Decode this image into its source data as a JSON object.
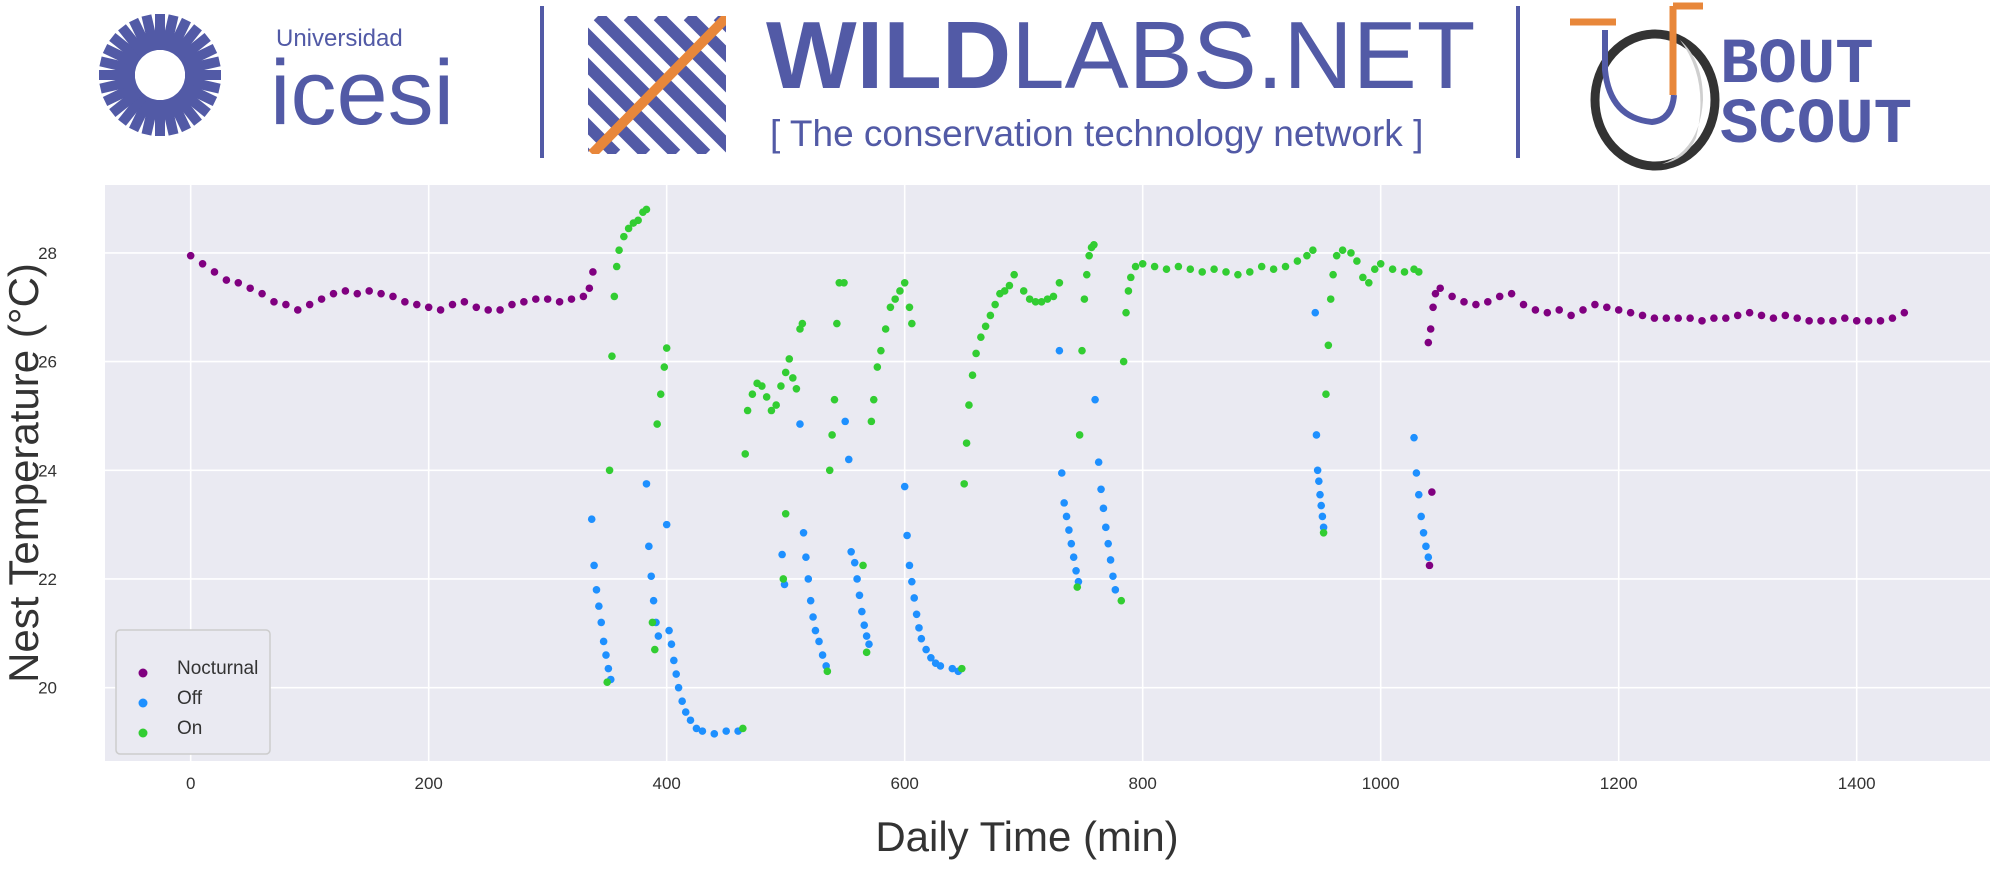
{
  "header": {
    "icesi_small": "Universidad",
    "icesi_big": "icesi",
    "wildlabs_bold": "WILD",
    "wildlabs_light": "LABS.NET",
    "wildlabs_tagline": "[ The conservation technology network ]",
    "boutscout_line1": "BOUT",
    "boutscout_line2": "SCOUT",
    "colors": {
      "brand": "#525aa6",
      "accent": "#e8873a",
      "dark": "#333333"
    }
  },
  "chart_data": {
    "type": "scatter",
    "xlabel": "Daily Time (min)",
    "ylabel": "Nest Temperature (°C)",
    "xlim": [
      -72,
      1512
    ],
    "ylim": [
      18.65,
      29.25
    ],
    "xticks": [
      0,
      200,
      400,
      600,
      800,
      1000,
      1200,
      1400
    ],
    "yticks": [
      20,
      22,
      24,
      26,
      28
    ],
    "grid": true,
    "legend_position": "bottom-left",
    "background": "#eaeaf2",
    "series": [
      {
        "name": "Nocturnal",
        "color": "#800080",
        "points": [
          [
            0,
            27.95
          ],
          [
            10,
            27.8
          ],
          [
            20,
            27.65
          ],
          [
            30,
            27.5
          ],
          [
            40,
            27.45
          ],
          [
            50,
            27.35
          ],
          [
            60,
            27.25
          ],
          [
            70,
            27.1
          ],
          [
            80,
            27.05
          ],
          [
            90,
            26.95
          ],
          [
            100,
            27.05
          ],
          [
            110,
            27.15
          ],
          [
            120,
            27.25
          ],
          [
            130,
            27.3
          ],
          [
            140,
            27.25
          ],
          [
            150,
            27.3
          ],
          [
            160,
            27.25
          ],
          [
            170,
            27.2
          ],
          [
            180,
            27.1
          ],
          [
            190,
            27.05
          ],
          [
            200,
            27.0
          ],
          [
            210,
            26.95
          ],
          [
            220,
            27.05
          ],
          [
            230,
            27.1
          ],
          [
            240,
            27.0
          ],
          [
            250,
            26.95
          ],
          [
            260,
            26.95
          ],
          [
            270,
            27.05
          ],
          [
            280,
            27.1
          ],
          [
            290,
            27.15
          ],
          [
            300,
            27.15
          ],
          [
            310,
            27.1
          ],
          [
            320,
            27.15
          ],
          [
            330,
            27.2
          ],
          [
            335,
            27.35
          ],
          [
            338,
            27.65
          ],
          [
            1040,
            26.35
          ],
          [
            1042,
            26.6
          ],
          [
            1044,
            27.0
          ],
          [
            1046,
            27.25
          ],
          [
            1050,
            27.35
          ],
          [
            1060,
            27.2
          ],
          [
            1070,
            27.1
          ],
          [
            1080,
            27.05
          ],
          [
            1090,
            27.1
          ],
          [
            1100,
            27.2
          ],
          [
            1110,
            27.25
          ],
          [
            1120,
            27.05
          ],
          [
            1130,
            26.95
          ],
          [
            1140,
            26.9
          ],
          [
            1150,
            26.95
          ],
          [
            1160,
            26.85
          ],
          [
            1170,
            26.95
          ],
          [
            1180,
            27.05
          ],
          [
            1190,
            27.0
          ],
          [
            1200,
            26.95
          ],
          [
            1210,
            26.9
          ],
          [
            1220,
            26.85
          ],
          [
            1230,
            26.8
          ],
          [
            1240,
            26.8
          ],
          [
            1250,
            26.8
          ],
          [
            1260,
            26.8
          ],
          [
            1270,
            26.75
          ],
          [
            1280,
            26.8
          ],
          [
            1290,
            26.8
          ],
          [
            1300,
            26.85
          ],
          [
            1310,
            26.9
          ],
          [
            1320,
            26.85
          ],
          [
            1330,
            26.8
          ],
          [
            1340,
            26.85
          ],
          [
            1350,
            26.8
          ],
          [
            1360,
            26.75
          ],
          [
            1370,
            26.75
          ],
          [
            1380,
            26.75
          ],
          [
            1390,
            26.8
          ],
          [
            1400,
            26.75
          ],
          [
            1410,
            26.75
          ],
          [
            1420,
            26.75
          ],
          [
            1430,
            26.8
          ],
          [
            1440,
            26.9
          ],
          [
            1043,
            23.6
          ],
          [
            1041,
            22.25
          ]
        ]
      },
      {
        "name": "Off",
        "color": "#1e90ff",
        "points": [
          [
            337,
            23.1
          ],
          [
            339,
            22.25
          ],
          [
            341,
            21.8
          ],
          [
            343,
            21.5
          ],
          [
            345,
            21.2
          ],
          [
            347,
            20.85
          ],
          [
            349,
            20.6
          ],
          [
            351,
            20.35
          ],
          [
            353,
            20.15
          ],
          [
            383,
            23.75
          ],
          [
            385,
            22.6
          ],
          [
            387,
            22.05
          ],
          [
            389,
            21.6
          ],
          [
            391,
            21.2
          ],
          [
            393,
            20.95
          ],
          [
            400,
            23.0
          ],
          [
            402,
            21.05
          ],
          [
            404,
            20.8
          ],
          [
            406,
            20.5
          ],
          [
            408,
            20.25
          ],
          [
            410,
            20.0
          ],
          [
            413,
            19.75
          ],
          [
            416,
            19.55
          ],
          [
            420,
            19.4
          ],
          [
            425,
            19.25
          ],
          [
            430,
            19.2
          ],
          [
            440,
            19.15
          ],
          [
            450,
            19.2
          ],
          [
            460,
            19.2
          ],
          [
            497,
            22.45
          ],
          [
            499,
            21.9
          ],
          [
            512,
            24.85
          ],
          [
            515,
            22.85
          ],
          [
            517,
            22.4
          ],
          [
            519,
            22.0
          ],
          [
            521,
            21.6
          ],
          [
            523,
            21.3
          ],
          [
            525,
            21.05
          ],
          [
            528,
            20.85
          ],
          [
            531,
            20.6
          ],
          [
            534,
            20.4
          ],
          [
            550,
            24.9
          ],
          [
            553,
            24.2
          ],
          [
            555,
            22.5
          ],
          [
            558,
            22.3
          ],
          [
            560,
            22.0
          ],
          [
            562,
            21.7
          ],
          [
            564,
            21.4
          ],
          [
            566,
            21.15
          ],
          [
            568,
            20.95
          ],
          [
            570,
            20.8
          ],
          [
            600,
            23.7
          ],
          [
            602,
            22.8
          ],
          [
            604,
            22.25
          ],
          [
            606,
            21.95
          ],
          [
            608,
            21.65
          ],
          [
            610,
            21.35
          ],
          [
            612,
            21.1
          ],
          [
            614,
            20.9
          ],
          [
            618,
            20.7
          ],
          [
            622,
            20.55
          ],
          [
            626,
            20.45
          ],
          [
            630,
            20.4
          ],
          [
            640,
            20.35
          ],
          [
            645,
            20.3
          ],
          [
            730,
            26.2
          ],
          [
            732,
            23.95
          ],
          [
            734,
            23.4
          ],
          [
            736,
            23.15
          ],
          [
            738,
            22.9
          ],
          [
            740,
            22.65
          ],
          [
            742,
            22.4
          ],
          [
            744,
            22.15
          ],
          [
            746,
            21.95
          ],
          [
            760,
            25.3
          ],
          [
            763,
            24.15
          ],
          [
            765,
            23.65
          ],
          [
            767,
            23.3
          ],
          [
            769,
            22.95
          ],
          [
            771,
            22.65
          ],
          [
            773,
            22.35
          ],
          [
            775,
            22.05
          ],
          [
            777,
            21.8
          ],
          [
            945,
            26.9
          ],
          [
            946,
            24.65
          ],
          [
            947,
            24.0
          ],
          [
            948,
            23.8
          ],
          [
            949,
            23.55
          ],
          [
            950,
            23.35
          ],
          [
            951,
            23.15
          ],
          [
            952,
            22.95
          ],
          [
            1028,
            24.6
          ],
          [
            1030,
            23.95
          ],
          [
            1032,
            23.55
          ],
          [
            1034,
            23.15
          ],
          [
            1036,
            22.85
          ],
          [
            1038,
            22.6
          ],
          [
            1040,
            22.4
          ]
        ]
      },
      {
        "name": "On",
        "color": "#32cd32",
        "points": [
          [
            350,
            20.1
          ],
          [
            352,
            24.0
          ],
          [
            354,
            26.1
          ],
          [
            356,
            27.2
          ],
          [
            358,
            27.75
          ],
          [
            360,
            28.05
          ],
          [
            364,
            28.3
          ],
          [
            368,
            28.45
          ],
          [
            372,
            28.55
          ],
          [
            376,
            28.6
          ],
          [
            380,
            28.75
          ],
          [
            383,
            28.8
          ],
          [
            388,
            21.2
          ],
          [
            390,
            20.7
          ],
          [
            392,
            24.85
          ],
          [
            395,
            25.4
          ],
          [
            398,
            25.9
          ],
          [
            400,
            26.25
          ],
          [
            464,
            19.25
          ],
          [
            466,
            24.3
          ],
          [
            468,
            25.1
          ],
          [
            472,
            25.4
          ],
          [
            476,
            25.6
          ],
          [
            480,
            25.55
          ],
          [
            484,
            25.35
          ],
          [
            488,
            25.1
          ],
          [
            492,
            25.2
          ],
          [
            496,
            25.55
          ],
          [
            500,
            25.8
          ],
          [
            503,
            26.05
          ],
          [
            506,
            25.7
          ],
          [
            509,
            25.5
          ],
          [
            512,
            26.6
          ],
          [
            514,
            26.7
          ],
          [
            500,
            23.2
          ],
          [
            498,
            22.0
          ],
          [
            535,
            20.3
          ],
          [
            537,
            24.0
          ],
          [
            539,
            24.65
          ],
          [
            541,
            25.3
          ],
          [
            543,
            26.7
          ],
          [
            545,
            27.45
          ],
          [
            549,
            27.45
          ],
          [
            565,
            22.25
          ],
          [
            568,
            20.65
          ],
          [
            572,
            24.9
          ],
          [
            574,
            25.3
          ],
          [
            577,
            25.9
          ],
          [
            580,
            26.2
          ],
          [
            584,
            26.6
          ],
          [
            588,
            27.0
          ],
          [
            592,
            27.15
          ],
          [
            596,
            27.3
          ],
          [
            600,
            27.45
          ],
          [
            604,
            27.0
          ],
          [
            606,
            26.7
          ],
          [
            648,
            20.35
          ],
          [
            650,
            23.75
          ],
          [
            652,
            24.5
          ],
          [
            654,
            25.2
          ],
          [
            657,
            25.75
          ],
          [
            660,
            26.15
          ],
          [
            664,
            26.45
          ],
          [
            668,
            26.65
          ],
          [
            672,
            26.85
          ],
          [
            676,
            27.05
          ],
          [
            680,
            27.25
          ],
          [
            684,
            27.3
          ],
          [
            688,
            27.4
          ],
          [
            692,
            27.6
          ],
          [
            700,
            27.3
          ],
          [
            705,
            27.15
          ],
          [
            710,
            27.1
          ],
          [
            715,
            27.1
          ],
          [
            720,
            27.15
          ],
          [
            725,
            27.2
          ],
          [
            730,
            27.45
          ],
          [
            745,
            21.85
          ],
          [
            747,
            24.65
          ],
          [
            749,
            26.2
          ],
          [
            751,
            27.15
          ],
          [
            753,
            27.6
          ],
          [
            755,
            27.95
          ],
          [
            757,
            28.1
          ],
          [
            759,
            28.15
          ],
          [
            782,
            21.6
          ],
          [
            784,
            26.0
          ],
          [
            786,
            26.9
          ],
          [
            788,
            27.3
          ],
          [
            790,
            27.55
          ],
          [
            794,
            27.75
          ],
          [
            800,
            27.8
          ],
          [
            810,
            27.75
          ],
          [
            820,
            27.7
          ],
          [
            830,
            27.75
          ],
          [
            840,
            27.7
          ],
          [
            850,
            27.65
          ],
          [
            860,
            27.7
          ],
          [
            870,
            27.65
          ],
          [
            880,
            27.6
          ],
          [
            890,
            27.65
          ],
          [
            900,
            27.75
          ],
          [
            910,
            27.7
          ],
          [
            920,
            27.75
          ],
          [
            930,
            27.85
          ],
          [
            938,
            27.95
          ],
          [
            943,
            28.05
          ],
          [
            952,
            22.85
          ],
          [
            954,
            25.4
          ],
          [
            956,
            26.3
          ],
          [
            958,
            27.15
          ],
          [
            960,
            27.6
          ],
          [
            963,
            27.95
          ],
          [
            968,
            28.05
          ],
          [
            975,
            28.0
          ],
          [
            980,
            27.85
          ],
          [
            985,
            27.55
          ],
          [
            990,
            27.45
          ],
          [
            995,
            27.7
          ],
          [
            1000,
            27.8
          ],
          [
            1010,
            27.7
          ],
          [
            1020,
            27.65
          ],
          [
            1028,
            27.7
          ],
          [
            1032,
            27.65
          ]
        ]
      }
    ]
  }
}
